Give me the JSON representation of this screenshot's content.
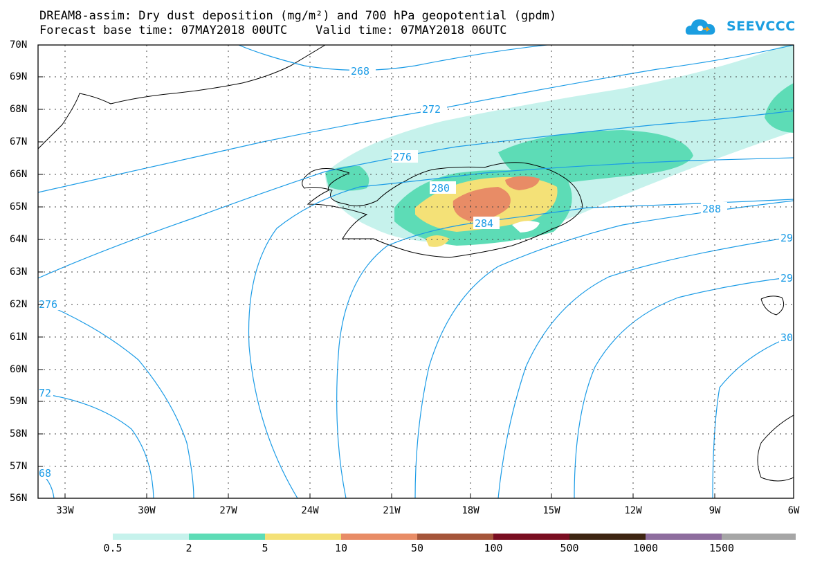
{
  "header": {
    "title_line1": "DREAM8-assim: Dry dust deposition (mg/m²) and 700 hPa geopotential (gpdm)",
    "title_line2": "Forecast base time: 07MAY2018 00UTC    Valid time: 07MAY2018 06UTC"
  },
  "logo": {
    "text": "SEEVCCC",
    "icon": "cloud-icon",
    "color": "#1b9ee0"
  },
  "axes": {
    "lat_labels": [
      "70N",
      "69N",
      "68N",
      "67N",
      "66N",
      "65N",
      "64N",
      "63N",
      "62N",
      "61N",
      "60N",
      "59N",
      "58N",
      "57N",
      "56N"
    ],
    "lon_labels": [
      "33W",
      "30W",
      "27W",
      "24W",
      "21W",
      "18W",
      "15W",
      "12W",
      "9W",
      "6W"
    ]
  },
  "contours": {
    "color": "#1a9be6",
    "labels": [
      "268",
      "272",
      "276",
      "280",
      "284",
      "288",
      "29",
      "29",
      "30",
      "276",
      "72",
      "68"
    ]
  },
  "colorbar": {
    "labels": [
      "0.5",
      "2",
      "5",
      "10",
      "50",
      "100",
      "500",
      "1000",
      "1500"
    ],
    "colors": [
      "#c6f2ec",
      "#5ddcb6",
      "#f4e177",
      "#e88c66",
      "#a5553a",
      "#7a0e22",
      "#3e2512",
      "#8e6d9e",
      "#a6a6a6"
    ]
  }
}
